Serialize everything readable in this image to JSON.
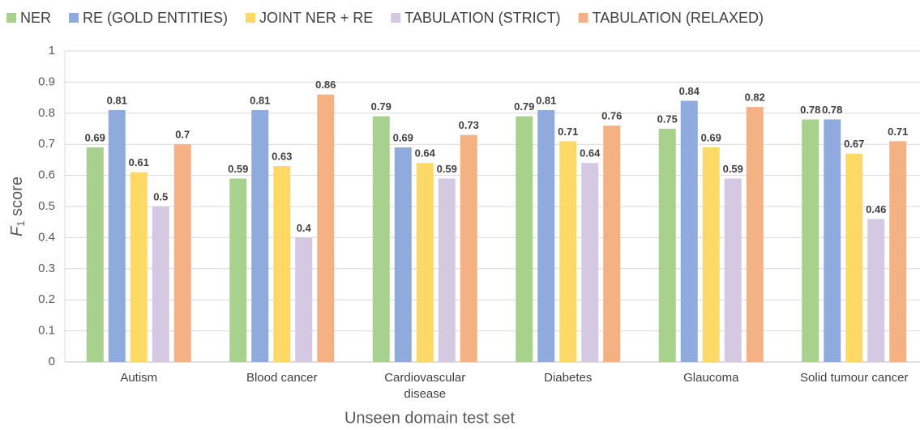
{
  "chart_data": {
    "type": "bar",
    "ylabel": [
      "F",
      "1",
      " score"
    ],
    "xlabel": "Unseen domain test set",
    "categories": [
      "Autism",
      "Blood cancer",
      "Cardiovascular disease",
      "Diabetes",
      "Glaucoma",
      "Solid tumour cancer"
    ],
    "series": [
      {
        "name": "NER",
        "color": "#a9d18e",
        "values": [
          0.69,
          0.59,
          0.79,
          0.79,
          0.75,
          0.78
        ]
      },
      {
        "name": "RE (GOLD ENTITIES)",
        "color": "#8faadc",
        "values": [
          0.81,
          0.81,
          0.69,
          0.81,
          0.84,
          0.78
        ]
      },
      {
        "name": "JOINT NER + RE",
        "color": "#ffd966",
        "values": [
          0.61,
          0.63,
          0.64,
          0.71,
          0.69,
          0.67
        ]
      },
      {
        "name": "TABULATION (STRICT)",
        "color": "#d5c8e2",
        "values": [
          0.5,
          0.4,
          0.59,
          0.64,
          0.59,
          0.46
        ]
      },
      {
        "name": "TABULATION (RELAXED)",
        "color": "#f4b183",
        "values": [
          0.7,
          0.86,
          0.73,
          0.76,
          0.82,
          0.71
        ]
      }
    ],
    "ylim": [
      0,
      1
    ],
    "yticks": [
      0,
      0.1,
      0.2,
      0.3,
      0.4,
      0.5,
      0.6,
      0.7,
      0.8,
      0.9,
      1
    ],
    "grid": true,
    "legend": "top"
  }
}
